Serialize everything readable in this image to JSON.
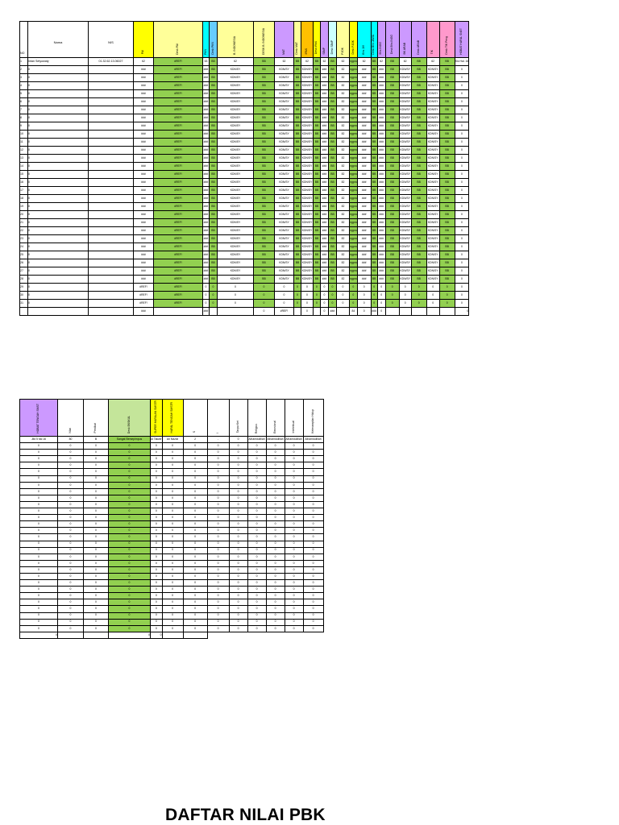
{
  "title": "DAFTAR NILAI PBK",
  "table1": {
    "headers": {
      "no": "NO",
      "nama": "Nama",
      "nis": "NIS",
      "pai": "PAI",
      "desk_pai": "Desk PAI",
      "pkn": "PKN",
      "desk_pkn": "Desk PKN",
      "b_indonesia": "B. INDONESIA",
      "desk_b_indonesia": "DESK B. INDONESIA",
      "mat": "MAT",
      "desk_mat": "Desk MAT",
      "ipas": "IPAS",
      "desk_ipas": "Desk IPAS",
      "sbdp": "SBdP",
      "desk_sbdp": "Desk SBdP",
      "pjok": "PJOK",
      "desk_pjok": "Desk PJOK",
      "bhs_jw": "Bhs JW",
      "desk_bhs_jawa": "Desk Bhs JAWA",
      "bhs_inggris": "Bhs INGG",
      "desk_bhs_inggris": "Desk Bhs INGG",
      "bk_arab": "BK ARAB",
      "desk_arab": "Desk ARAB",
      "tik": "TIK",
      "desk_tik": "Desk TIK Peng",
      "hobat": "HOBAT HAFAL SNET"
    },
    "first_row": {
      "no": "1",
      "nama": "Intan Setyowaty",
      "nis": "01.32.62.13.06027",
      "pai": "62",
      "desk": "#REF!",
      "pkn": "63",
      "bb": "BB",
      "b_indo": "62",
      "mat": "62",
      "ipas": "62",
      "sbdp": "62",
      "pjok": "62",
      "bhs_jw": "62",
      "gawe": "ngpra",
      "bhs_ingg": "62",
      "arab": "62",
      "tik": "62",
      "hobat": "Sio Hal. 16"
    },
    "other_rows": {
      "nama": "0",
      "num": "###",
      "desk": "#REF!",
      "word": "KDN/SY",
      "bb": "BB",
      "v82": "82",
      "ngpra": "ngpra",
      "last": "0"
    },
    "ref_row": {
      "ref": "#REF!",
      "zero": "0"
    },
    "totals": {
      "nis": "###",
      "desk": "###",
      "zero": "0",
      "ref": "#REF!",
      "hash": "###",
      "h84": "84"
    }
  },
  "table2": {
    "headers": [
      "HOBAT TENGAH SMST",
      "Nilai",
      "Predikat",
      "Desk EKSKUL",
      "SUPER HAFALAN SMSTR",
      "HAFAL TENGAH SMSTR",
      "S",
      "I",
      "Tanpa Ket",
      "Religius",
      "Emosional",
      "Intelektual",
      "Keterampilan Hidup"
    ],
    "first_row": [
      "Jild 5 hal 16",
      "80",
      "B",
      "Sangat Bersepimpus",
      "Al Takwir",
      "An Nazizi",
      "2",
      "-",
      "0",
      "Alhamdulillah",
      "Alhamdulillah",
      "Alhamdulillah",
      "Alhamdulillah"
    ],
    "zero": "0",
    "totals": {
      "a": "0",
      "b": "0",
      "c": "0"
    }
  }
}
